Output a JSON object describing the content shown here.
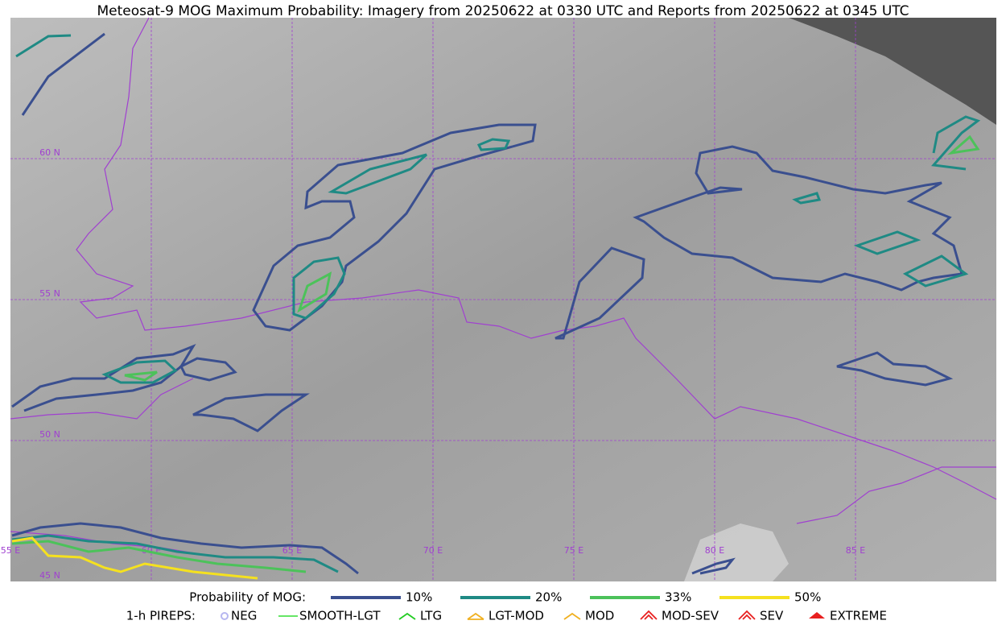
{
  "title": "Meteosat-9 MOG Maximum Probability: Imagery from 20250622 at 0330 UTC and Reports from 20250622 at 0345 UTC",
  "grid": {
    "lon_labels": [
      "55 E",
      "60 E",
      "65 E",
      "70 E",
      "75 E",
      "80 E",
      "85 E"
    ],
    "lat_labels": [
      "60 N",
      "55 N",
      "50 N",
      "45 N"
    ]
  },
  "legend": {
    "title": "Probability of MOG:",
    "items": [
      {
        "label": "10%",
        "color": "#3a4f8f"
      },
      {
        "label": "20%",
        "color": "#1f8a84"
      },
      {
        "label": "33%",
        "color": "#4cc25a"
      },
      {
        "label": "50%",
        "color": "#f5e11f"
      }
    ]
  },
  "pireps": {
    "title": "1-h PIREPS:",
    "items": [
      {
        "label": "NEG",
        "color": "#b7b7f0"
      },
      {
        "label": "SMOOTH-LGT",
        "color": "#33dd33"
      },
      {
        "label": "LTG",
        "color": "#22cc22"
      },
      {
        "label": "LGT-MOD",
        "color": "#f0b020"
      },
      {
        "label": "MOD",
        "color": "#f0b020"
      },
      {
        "label": "MOD-SEV",
        "color": "#e82020"
      },
      {
        "label": "SEV",
        "color": "#e82020"
      },
      {
        "label": "EXTREME",
        "color": "#e82020"
      }
    ]
  }
}
